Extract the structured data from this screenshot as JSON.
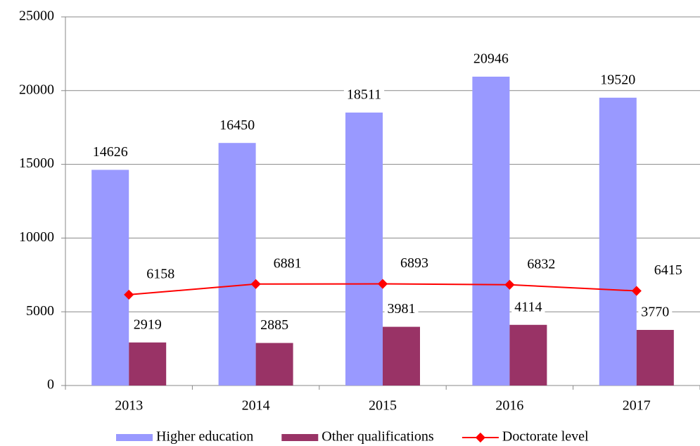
{
  "chart_data": {
    "type": "bar",
    "categories": [
      "2013",
      "2014",
      "2015",
      "2016",
      "2017"
    ],
    "series": [
      {
        "name": "Higher education",
        "color": "#9999ff",
        "values": [
          14626,
          16450,
          18511,
          20946,
          19520
        ]
      },
      {
        "name": "Other qualifications",
        "color": "#993366",
        "values": [
          2919,
          2885,
          3981,
          4114,
          3770
        ]
      },
      {
        "name": "Doctorate level",
        "color": "#ff0000",
        "type": "line",
        "values": [
          6158,
          6881,
          6893,
          6832,
          6415
        ]
      }
    ],
    "ylim": [
      0,
      25000
    ],
    "yticks": [
      0,
      5000,
      10000,
      15000,
      20000,
      25000
    ],
    "grid": true,
    "legend": "bottom"
  }
}
